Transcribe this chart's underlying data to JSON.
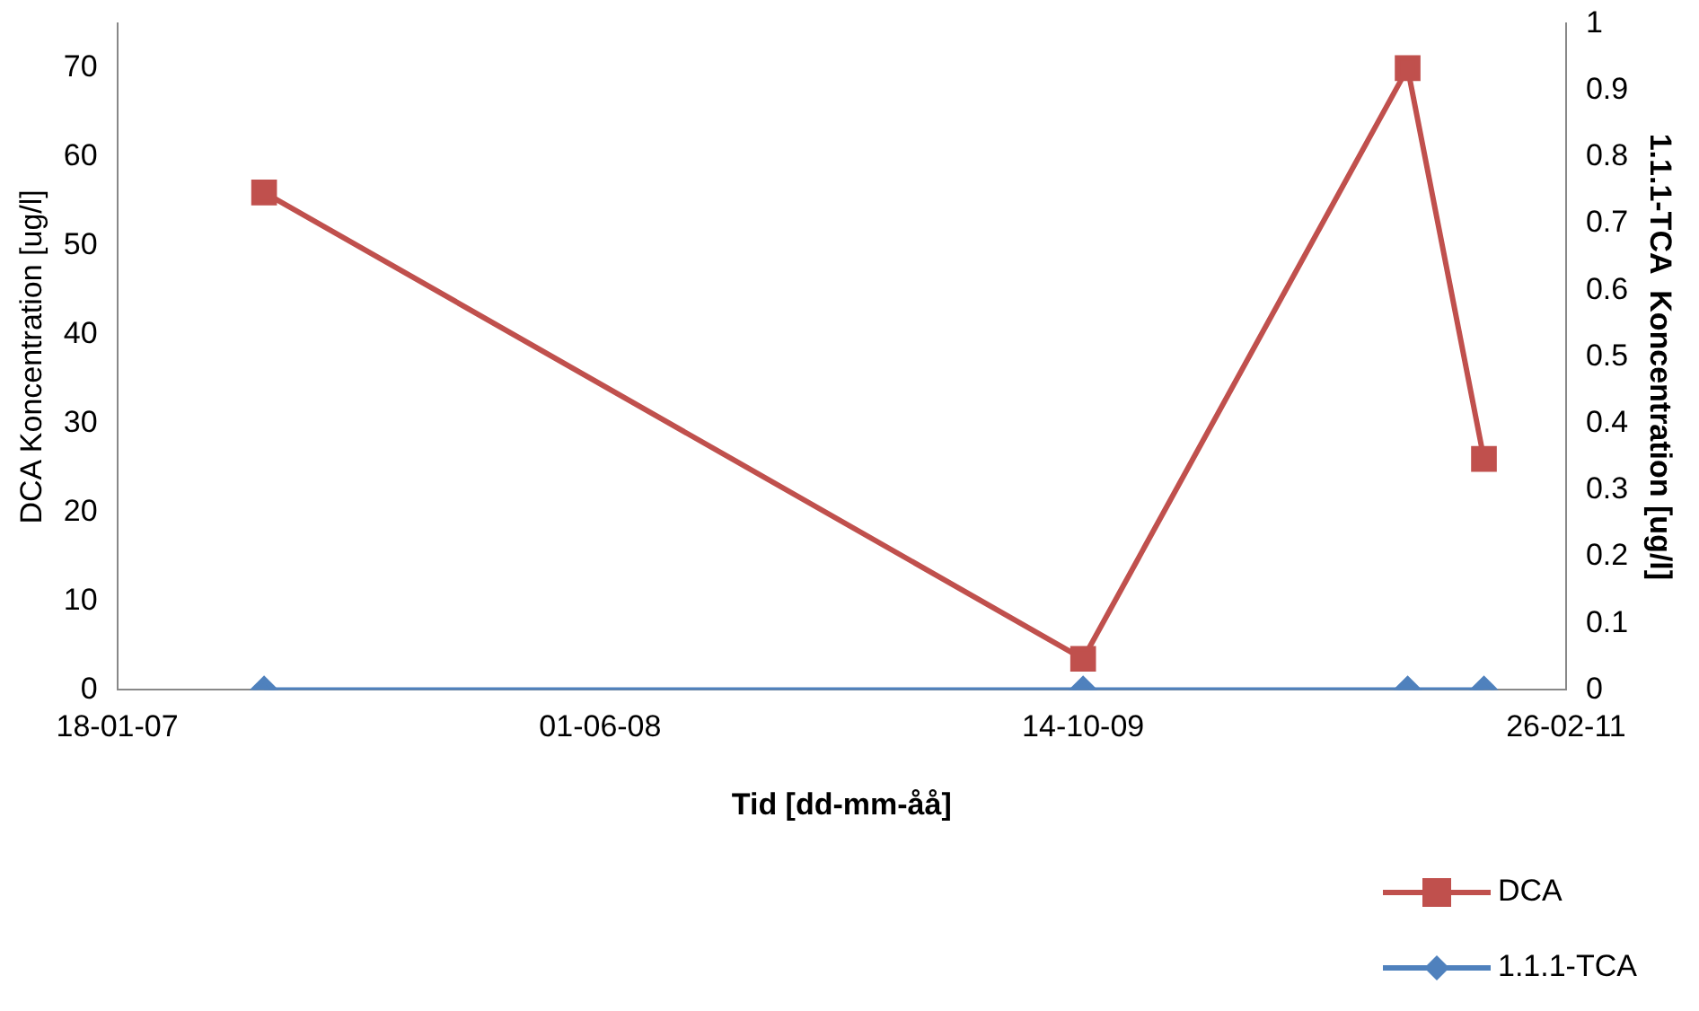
{
  "chart_data": {
    "type": "line",
    "xlabel": "Tid [dd-mm-åå]",
    "ylabel": "DCA Koncentration [ug/l]",
    "y2label": "1.1.1-TCA  Koncentration [ug/l]",
    "x": [
      "2007-06-19",
      "2009-10-14",
      "2010-09-15",
      "2010-12-03"
    ],
    "series": [
      {
        "name": "DCA",
        "color": "#c0504d",
        "values": [
          56,
          3.5,
          70,
          26
        ],
        "marker": "square"
      },
      {
        "name": "1.1.1-TCA",
        "color": "#4f81bd",
        "values": [
          0,
          0,
          0,
          0
        ],
        "axis": "y2",
        "marker": "diamond"
      }
    ],
    "xlim": [
      "2007-01-18",
      "2011-02-26"
    ],
    "xticks": [
      {
        "value": "2007-01-18",
        "label": "18-01-07"
      },
      {
        "value": "2008-06-01",
        "label": "01-06-08"
      },
      {
        "value": "2009-10-14",
        "label": "14-10-09"
      },
      {
        "value": "2011-02-26",
        "label": "26-02-11"
      }
    ],
    "ylim": [
      0,
      75
    ],
    "yticks": [
      0,
      10,
      20,
      30,
      40,
      50,
      60,
      70
    ],
    "y2lim": [
      0,
      1
    ],
    "y2ticks": [
      0,
      0.1,
      0.2,
      0.3,
      0.4,
      0.5,
      0.6,
      0.7,
      0.8,
      0.9,
      1
    ],
    "grid": false,
    "legend": "bottom right",
    "line_style": "solid"
  }
}
